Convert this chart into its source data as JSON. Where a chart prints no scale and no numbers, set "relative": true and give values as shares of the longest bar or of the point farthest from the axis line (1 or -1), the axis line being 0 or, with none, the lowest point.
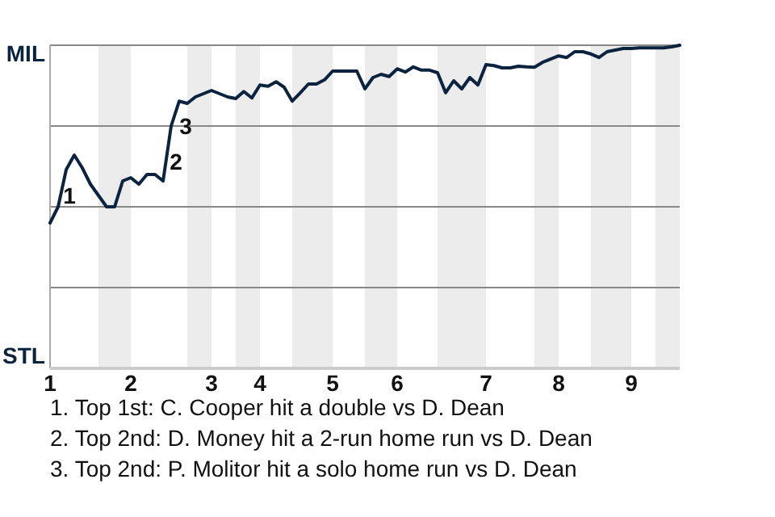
{
  "chart_data": {
    "type": "line",
    "relative": true,
    "categories": [
      "1",
      null,
      null,
      null,
      null,
      null,
      null,
      null,
      null,
      null,
      "2",
      null,
      null,
      null,
      null,
      null,
      null,
      null,
      null,
      null,
      "3",
      null,
      null,
      null,
      null,
      null,
      "4",
      null,
      null,
      null,
      null,
      null,
      null,
      null,
      null,
      "5",
      null,
      null,
      null,
      null,
      null,
      null,
      null,
      "6",
      null,
      null,
      null,
      null,
      null,
      null,
      null,
      null,
      null,
      null,
      "7",
      null,
      null,
      null,
      null,
      null,
      null,
      null,
      null,
      "8",
      null,
      null,
      null,
      null,
      null,
      null,
      null,
      null,
      "9",
      null,
      null,
      null,
      null,
      null,
      null
    ],
    "series": [
      {
        "color": "#0c2340",
        "values": [
          0.45,
          0.5,
          0.615,
          0.66,
          0.62,
          0.57,
          0.535,
          0.5,
          0.5,
          0.58,
          0.59,
          0.57,
          0.6,
          0.6,
          0.58,
          0.75,
          0.827,
          0.82,
          0.84,
          0.85,
          0.86,
          0.85,
          0.84,
          0.835,
          0.857,
          0.837,
          0.877,
          0.873,
          0.887,
          0.87,
          0.827,
          0.853,
          0.88,
          0.88,
          0.893,
          0.92,
          0.92,
          0.92,
          0.92,
          0.865,
          0.9,
          0.91,
          0.903,
          0.927,
          0.917,
          0.933,
          0.923,
          0.923,
          0.915,
          0.853,
          0.89,
          0.865,
          0.9,
          0.877,
          0.94,
          0.937,
          0.93,
          0.93,
          0.935,
          0.933,
          0.932,
          0.947,
          0.957,
          0.967,
          0.962,
          0.98,
          0.98,
          0.973,
          0.962,
          0.98,
          0.985,
          0.99,
          0.99,
          0.992,
          0.992,
          0.992,
          0.992,
          0.995,
          1
        ]
      }
    ],
    "marker": "none",
    "line_style": "solid",
    "ref_lines": [
      {
        "axis": "y",
        "value": 0.25,
        "color": "#888888"
      },
      {
        "axis": "y",
        "value": 0.5,
        "color": "#888888"
      },
      {
        "axis": "y",
        "value": 0.75,
        "color": "#888888"
      },
      {
        "axis": "y",
        "value": 1,
        "color": "#888888"
      }
    ],
    "annotations": [
      "MIL",
      "STL",
      "1",
      "2",
      "3",
      "1. Top 1st: C. Cooper hit a double vs D. Dean",
      "2. Top 2nd: D. Money hit a 2-run home run vs D. Dean",
      "3. Top 2nd: P. Molitor hit a solo home run vs D. Dean"
    ]
  }
}
